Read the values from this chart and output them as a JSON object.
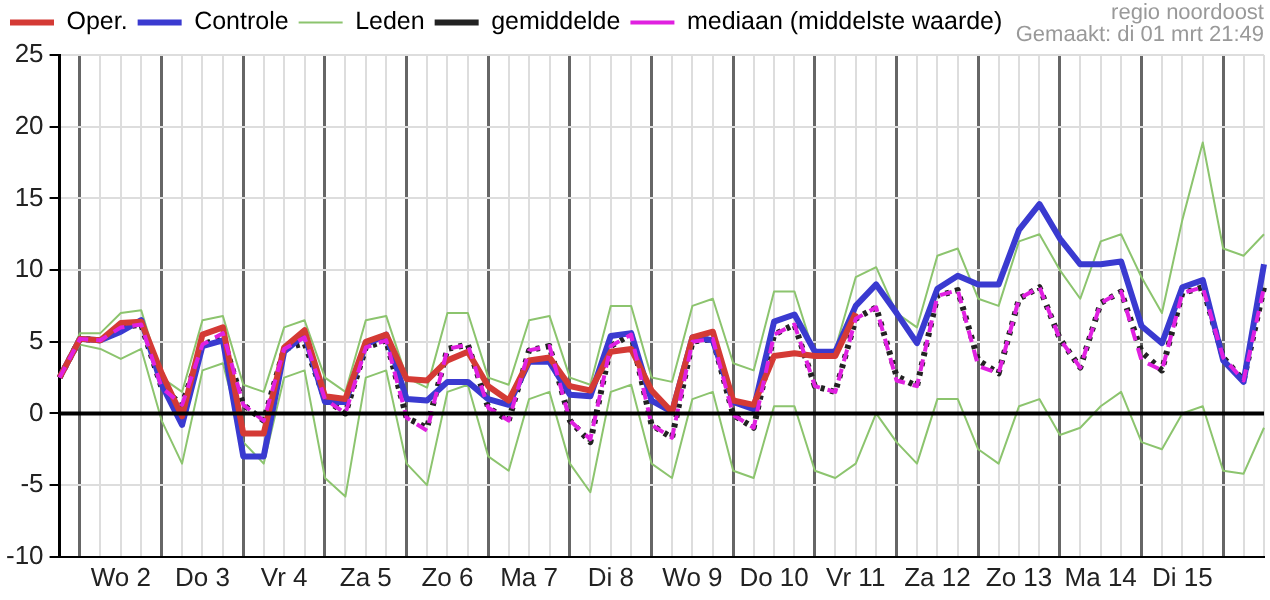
{
  "chart_data": {
    "type": "line",
    "annotations": [
      "regio noordoost",
      "Gemaakt: di 01 mrt 21:49"
    ],
    "categories": [
      null,
      null,
      null,
      "Wo 2",
      null,
      null,
      null,
      "Do 3",
      null,
      null,
      null,
      "Vr 4",
      null,
      null,
      null,
      "Za 5",
      null,
      null,
      null,
      "Zo 6",
      null,
      null,
      null,
      "Ma 7",
      null,
      null,
      null,
      "Di 8",
      null,
      null,
      null,
      "Wo 9",
      null,
      null,
      null,
      "Do 10",
      null,
      null,
      null,
      "Vr 11",
      null,
      null,
      null,
      "Za 12",
      null,
      null,
      null,
      "Zo 13",
      null,
      null,
      null,
      "Ma 14",
      null,
      null,
      null,
      "Di 15",
      null,
      null,
      null,
      null
    ],
    "ylim": [
      -10,
      25
    ],
    "yticks": [
      -10,
      -5,
      0,
      5,
      10,
      15,
      20,
      25
    ],
    "grid": true,
    "legend": "top left",
    "marker": "none",
    "ref_lines": [
      {
        "axis": "y",
        "value": 0,
        "color": "#000000"
      }
    ],
    "series": [
      {
        "name": "Oper.",
        "color": "#d43a35",
        "line_style": "solid",
        "values": [
          2.5,
          5.2,
          5.1,
          6.3,
          6.4,
          2.8,
          -0.2,
          5.5,
          6.0,
          -1.4,
          -1.4,
          4.6,
          5.8,
          1.2,
          1.0,
          5.0,
          5.5,
          2.4,
          2.3,
          3.7,
          4.3,
          1.9,
          0.9,
          3.7,
          3.9,
          1.9,
          1.6,
          4.3,
          4.5,
          1.6,
          0.1,
          5.3,
          5.7,
          0.9,
          0.6,
          4.0,
          4.2,
          4.0,
          4.0,
          7.0,
          null,
          null,
          null,
          null,
          null,
          null,
          null,
          null,
          null,
          null,
          null,
          null,
          null,
          null,
          null,
          null,
          null,
          null,
          null,
          null
        ]
      },
      {
        "name": "Controle",
        "color": "#3a3ad0",
        "line_style": "solid",
        "values": [
          2.5,
          5.2,
          5.1,
          5.7,
          6.5,
          2.0,
          -0.8,
          4.7,
          5.1,
          -3.0,
          -3.0,
          4.3,
          5.5,
          0.8,
          0.8,
          4.8,
          5.5,
          1.0,
          0.9,
          2.2,
          2.2,
          1.0,
          0.6,
          3.6,
          3.6,
          1.3,
          1.2,
          5.4,
          5.6,
          0.9,
          0.1,
          5.3,
          5.1,
          0.8,
          0.3,
          6.4,
          6.9,
          4.3,
          4.3,
          7.5,
          9.0,
          7.0,
          4.9,
          8.7,
          9.6,
          9.0,
          9.0,
          12.8,
          14.6,
          12.2,
          10.4,
          10.4,
          10.6,
          6.1,
          4.9,
          8.8,
          9.3,
          3.7,
          2.2,
          10.4
        ]
      },
      {
        "name": "Leden",
        "color": "#8cc46e",
        "line_style": "solid",
        "values": [
          2.5,
          5.6,
          5.6,
          7.0,
          7.2,
          2.5,
          1.5,
          6.5,
          6.8,
          2.0,
          1.5,
          6.0,
          6.5,
          2.5,
          1.5,
          6.5,
          6.8,
          2.5,
          1.8,
          7.0,
          7.0,
          2.5,
          2.0,
          6.5,
          6.8,
          2.5,
          2.0,
          7.5,
          7.5,
          2.5,
          2.2,
          7.5,
          8.0,
          3.5,
          3.0,
          8.5,
          8.5,
          4.0,
          4.5,
          9.5,
          10.2,
          7.0,
          6.0,
          11.0,
          11.5,
          8.0,
          7.5,
          12.0,
          12.5,
          10.0,
          8.0,
          12.0,
          12.5,
          9.5,
          7.0,
          13.5,
          18.9,
          11.5,
          11.0,
          12.5
        ]
      },
      {
        "color": "#8cc46e",
        "line_style": "solid",
        "values": [
          2.5,
          4.8,
          4.5,
          3.8,
          4.5,
          -0.5,
          -3.5,
          3.0,
          3.5,
          -2.0,
          -3.5,
          2.5,
          3.0,
          -4.5,
          -5.8,
          2.5,
          3.0,
          -3.5,
          -5.0,
          1.5,
          2.0,
          -3.0,
          -4.0,
          1.0,
          1.5,
          -3.5,
          -5.5,
          1.5,
          2.0,
          -3.5,
          -4.5,
          1.0,
          1.5,
          -4.0,
          -4.5,
          0.5,
          0.5,
          -4.0,
          -4.5,
          -3.5,
          0.0,
          -2.0,
          -3.5,
          1.0,
          1.0,
          -2.5,
          -3.5,
          0.5,
          1.0,
          -1.5,
          -1.0,
          0.5,
          1.5,
          -2.0,
          -2.5,
          0.0,
          0.5,
          -4.0,
          -4.2,
          -1.0
        ]
      },
      {
        "name": "gemiddelde",
        "color": "#222222",
        "line_style": "dotted",
        "values": [
          2.5,
          5.2,
          5.1,
          6.0,
          6.2,
          1.8,
          0.6,
          4.8,
          5.3,
          0.6,
          -0.5,
          4.5,
          4.9,
          1.0,
          0.0,
          4.6,
          5.1,
          -0.3,
          -1.0,
          4.5,
          4.8,
          0.4,
          -0.5,
          4.4,
          4.7,
          -0.5,
          -2.0,
          4.7,
          5.5,
          -0.8,
          -1.7,
          5.0,
          5.2,
          -0.1,
          -1.0,
          5.5,
          6.2,
          1.9,
          1.5,
          6.6,
          7.4,
          2.6,
          1.9,
          8.2,
          8.6,
          3.7,
          2.8,
          8.0,
          8.8,
          5.2,
          3.2,
          7.7,
          8.5,
          4.3,
          3.0,
          8.4,
          8.8,
          3.9,
          2.3,
          8.8
        ]
      },
      {
        "name": "mediaan (middelste waarde)",
        "color": "#e020e0",
        "line_style": "dashed",
        "values": [
          2.5,
          5.2,
          5.1,
          6.0,
          6.2,
          1.8,
          0.6,
          4.8,
          5.6,
          0.6,
          -0.5,
          4.5,
          5.3,
          1.0,
          0.0,
          4.6,
          5.1,
          -0.3,
          -1.2,
          4.5,
          4.8,
          0.4,
          -0.5,
          4.4,
          4.7,
          -0.5,
          -1.8,
          4.7,
          5.5,
          -0.8,
          -1.7,
          5.0,
          5.2,
          -0.1,
          -1.0,
          5.5,
          6.2,
          1.9,
          1.5,
          6.6,
          7.4,
          2.3,
          1.9,
          8.2,
          8.6,
          3.3,
          2.8,
          8.0,
          8.8,
          5.2,
          3.2,
          7.7,
          8.5,
          3.7,
          3.0,
          8.4,
          8.8,
          3.9,
          2.3,
          8.8
        ]
      }
    ]
  }
}
